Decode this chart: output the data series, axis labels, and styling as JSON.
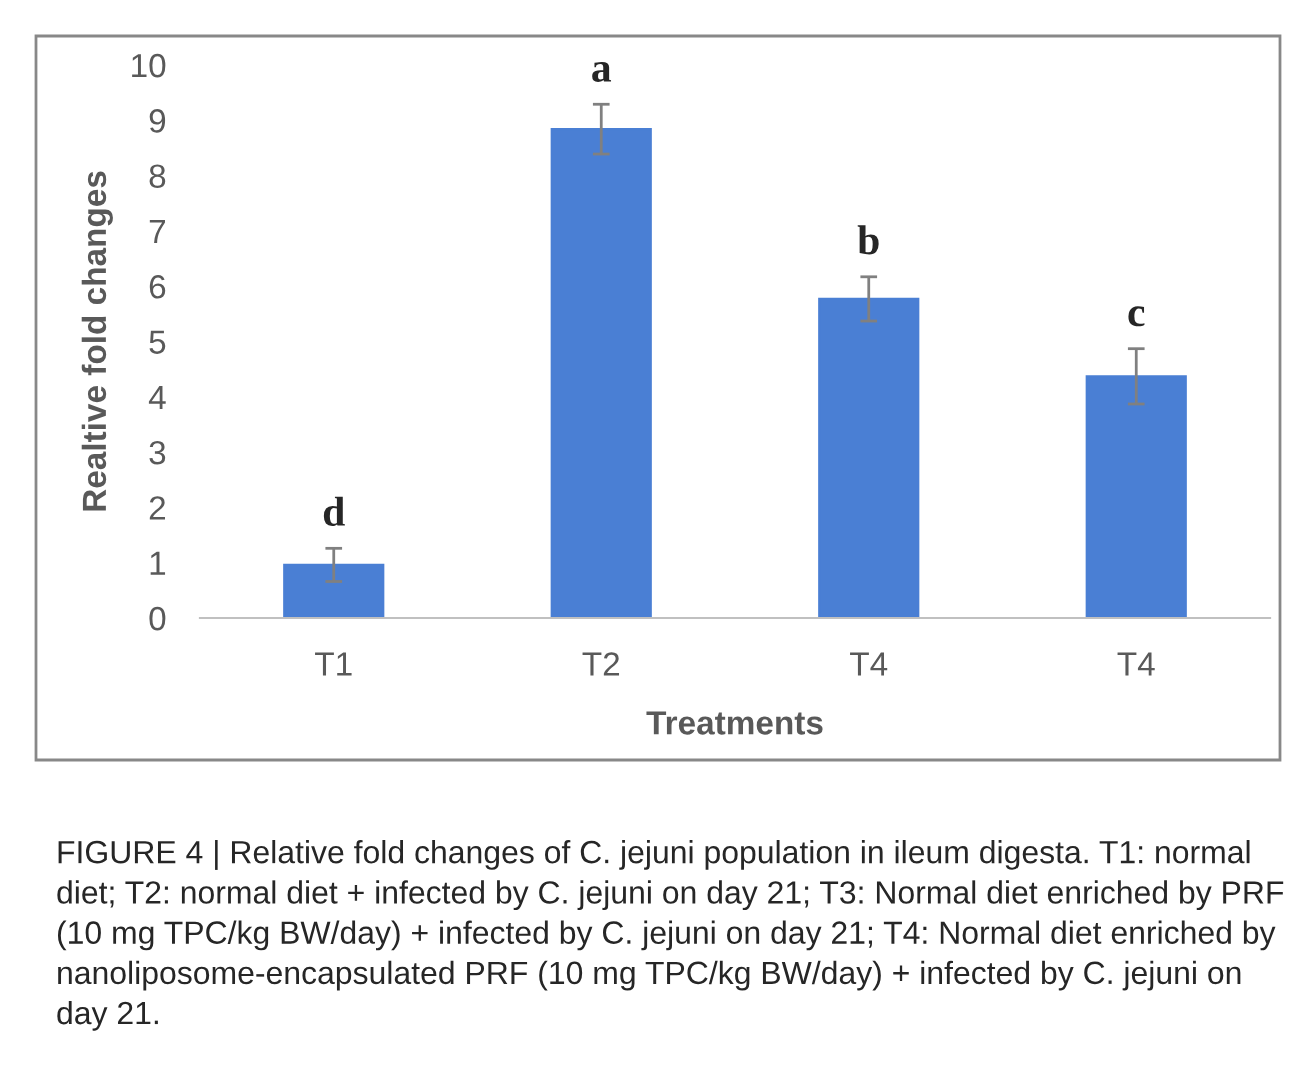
{
  "chart_data": {
    "type": "bar",
    "categories": [
      "T1",
      "T2",
      "T4",
      "T4"
    ],
    "values": [
      0.96,
      8.84,
      5.77,
      4.37
    ],
    "errors": [
      0.3,
      0.45,
      0.4,
      0.5
    ],
    "value_labels": [
      "d",
      "a",
      "b",
      "c"
    ],
    "color": "#4a7fd4",
    "xlabel": "Treatments",
    "ylabel": "Realtive fold changes",
    "ylim": [
      0,
      10
    ],
    "yticks": [
      0,
      1,
      2,
      3,
      4,
      5,
      6,
      7,
      8,
      9,
      10
    ],
    "grid": false,
    "legend": false,
    "annotations": [
      "FIGURE 4 | Relative fold changes of C. jejuni population in ileum digesta. T1: normal diet; T2: normal diet + infected by C. jejuni on day 21; T3: Normal diet enriched by PRF (10 mg TPC/kg BW/day) + infected by C. jejuni on day 21; T4: Normal diet enriched by nanoliposome-encapsulated PRF (10 mg TPC/kg BW/day) + infected by C. jejuni on day 21."
    ]
  }
}
